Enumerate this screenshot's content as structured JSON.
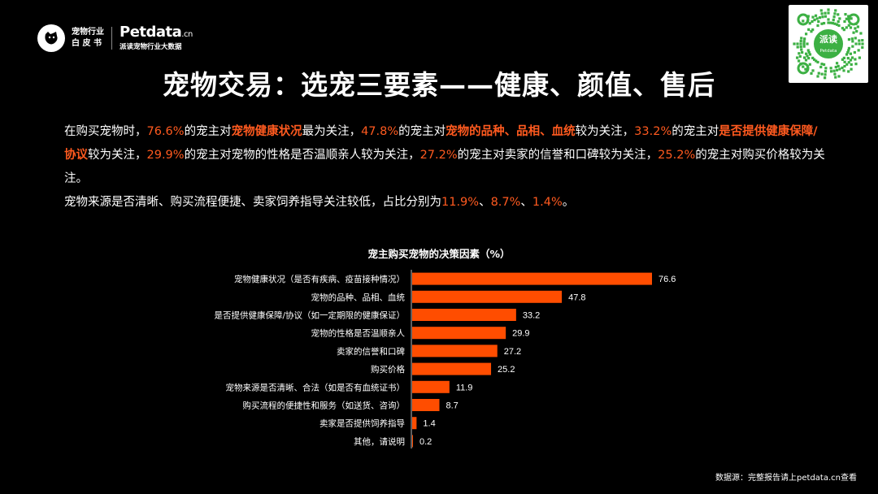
{
  "header": {
    "logo_line1": "宠物行业",
    "logo_line2": "白 皮 书",
    "brand_name": "Petdata",
    "brand_suffix": ".cn",
    "brand_sub": "派读宠物行业大数据"
  },
  "qr": {
    "center_title": "派读",
    "center_sub": "Petdata"
  },
  "title": "宠物交易：选宠三要素——健康、颜值、售后",
  "intro": {
    "p1": [
      {
        "t": "在购买宠物时，",
        "s": ""
      },
      {
        "t": "76.6%",
        "s": "hl"
      },
      {
        "t": "的宠主对",
        "s": ""
      },
      {
        "t": "宠物健康状况",
        "s": "hlb"
      },
      {
        "t": "最为关注，",
        "s": ""
      },
      {
        "t": "47.8%",
        "s": "hl"
      },
      {
        "t": "的宠主对",
        "s": ""
      },
      {
        "t": "宠物的品种、品相、血统",
        "s": "hlb"
      },
      {
        "t": "较为关注，",
        "s": ""
      },
      {
        "t": "33.2%",
        "s": "hl"
      },
      {
        "t": "的宠主对",
        "s": ""
      },
      {
        "t": "是否提供健康保障/协议",
        "s": "hlb"
      },
      {
        "t": "较为关注，",
        "s": ""
      },
      {
        "t": "29.9%",
        "s": "hl"
      },
      {
        "t": "的宠主对宠物的性格是否温顺亲人较为关注，",
        "s": ""
      },
      {
        "t": "27.2%",
        "s": "hl"
      },
      {
        "t": "的宠主对卖家的信誉和口碑较为关注，",
        "s": ""
      },
      {
        "t": "25.2%",
        "s": "hl"
      },
      {
        "t": "的宠主对购买价格较为关注。",
        "s": ""
      }
    ],
    "p2": [
      {
        "t": "宠物来源是否清晰、购买流程便捷、卖家饲养指导关注较低，占比分别为",
        "s": ""
      },
      {
        "t": "11.9%",
        "s": "hl"
      },
      {
        "t": "、",
        "s": ""
      },
      {
        "t": "8.7%",
        "s": "hl"
      },
      {
        "t": "、",
        "s": ""
      },
      {
        "t": "1.4%",
        "s": "hl"
      },
      {
        "t": "。",
        "s": ""
      }
    ]
  },
  "chart_data": {
    "type": "bar",
    "orientation": "horizontal",
    "title": "宠主购买宠物的决策因素（%）",
    "categories": [
      "宠物健康状况（是否有疾病、疫苗接种情况）",
      "宠物的品种、品相、血统",
      "是否提供健康保障/协议（如一定期限的健康保证）",
      "宠物的性格是否温顺亲人",
      "卖家的信誉和口碑",
      "购买价格",
      "宠物来源是否清晰、合法（如是否有血统证书）",
      "购买流程的便捷性和服务（如送货、咨询）",
      "卖家是否提供饲养指导",
      "其他，请说明"
    ],
    "values": [
      76.6,
      47.8,
      33.2,
      29.9,
      27.2,
      25.2,
      11.9,
      8.7,
      1.4,
      0.2
    ],
    "value_labels": [
      "76.6",
      "47.8",
      "33.2",
      "29.9",
      "27.2",
      "25.2",
      "11.9",
      "8.7",
      "1.4",
      "0.2"
    ],
    "bar_color": "#ff4d00",
    "grid": false,
    "data_labels": true
  },
  "source": "数据源：完整报告请上petdata.cn查看",
  "colors": {
    "accent": "#ff5a1f",
    "background": "#000000",
    "text": "#ffffff"
  }
}
